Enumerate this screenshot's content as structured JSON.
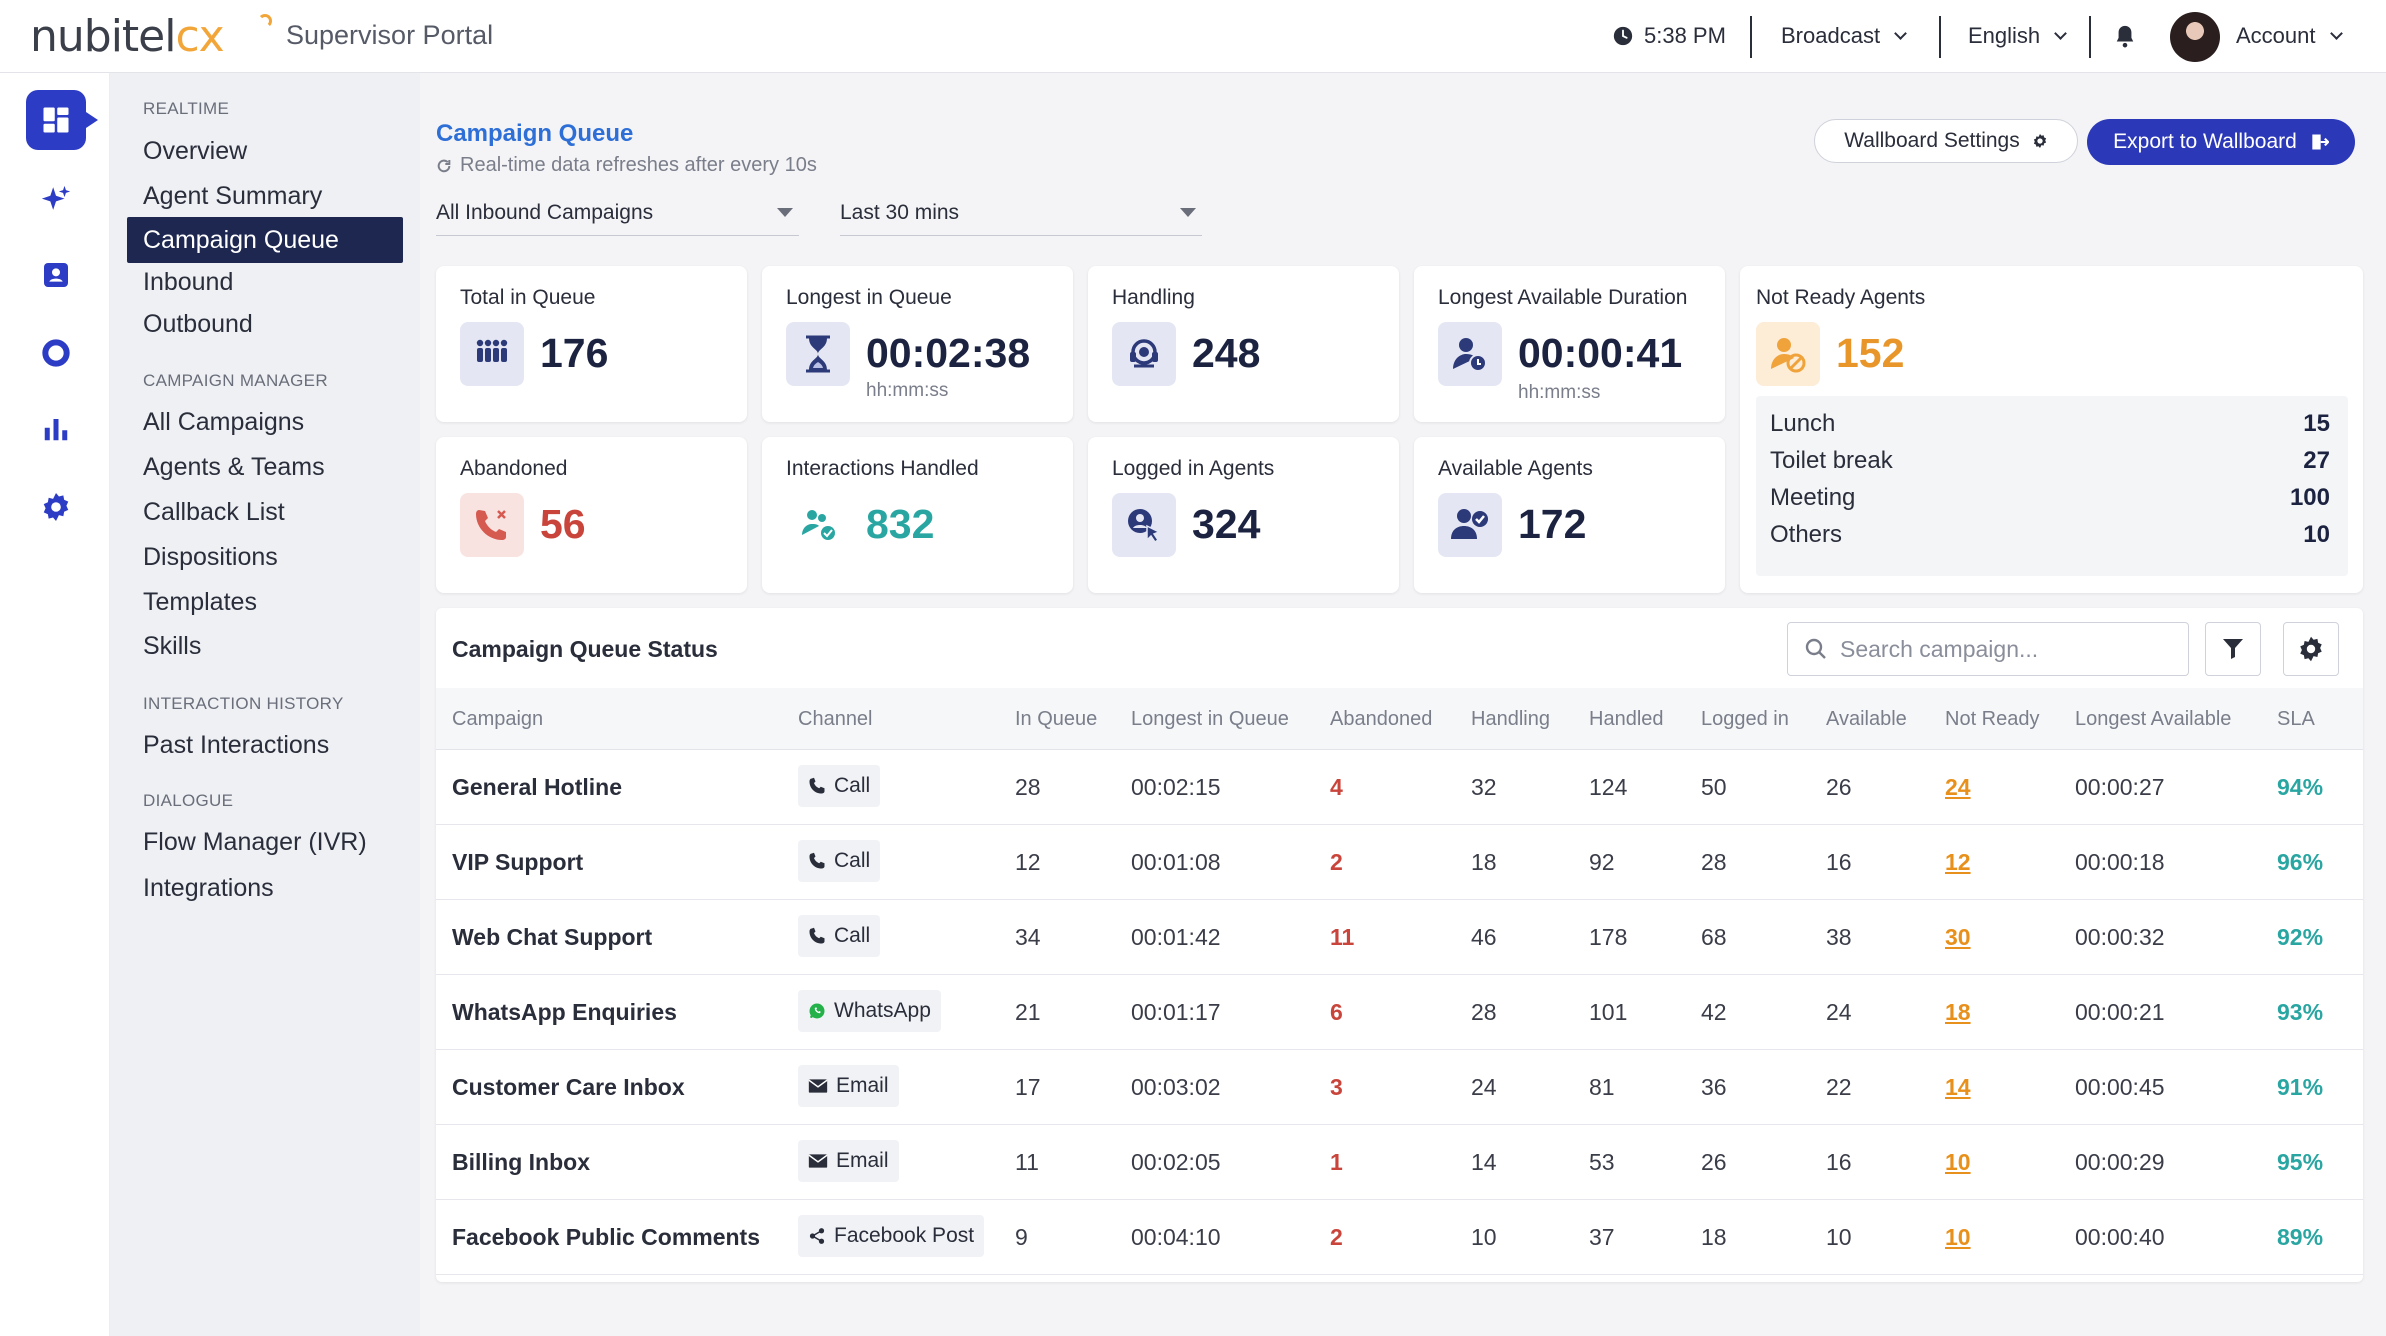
{
  "app": {
    "logo_left": "nubitel",
    "logo_right": "cx",
    "portal_title": "Supervisor Portal"
  },
  "topbar": {
    "time": "5:38 PM",
    "broadcast": "Broadcast",
    "language": "English",
    "account": "Account"
  },
  "nav": {
    "realtime": {
      "heading": "REALTIME",
      "items": [
        "Overview",
        "Agent Summary",
        "Campaign Queue",
        "Inbound",
        "Outbound"
      ]
    },
    "campaign_manager": {
      "heading": "CAMPAIGN MANAGER",
      "items": [
        "All Campaigns",
        "Agents & Teams",
        "Callback List",
        "Dispositions",
        "Templates",
        "Skills"
      ]
    },
    "interaction_history": {
      "heading": "INTERACTION HISTORY",
      "items": [
        "Past Interactions"
      ]
    },
    "dialogue": {
      "heading": "DIALOGUE",
      "items": [
        "Flow Manager (IVR)",
        "Integrations"
      ]
    }
  },
  "page": {
    "title": "Campaign Queue",
    "subtitle": "Real-time data refreshes after every 10s",
    "wallboard_settings": "Wallboard Settings",
    "export": "Export to Wallboard",
    "filter_campaign": "All Inbound Campaigns",
    "filter_range": "Last 30 mins"
  },
  "cards": {
    "total_in_queue": {
      "label": "Total in Queue",
      "value": "176"
    },
    "longest_in_queue": {
      "label": "Longest in Queue",
      "value": "00:02:38",
      "unit": "hh:mm:ss"
    },
    "handling": {
      "label": "Handling",
      "value": "248"
    },
    "longest_available": {
      "label": "Longest Available Duration",
      "value": "00:00:41",
      "unit": "hh:mm:ss"
    },
    "abandoned": {
      "label": "Abandoned",
      "value": "56"
    },
    "interactions_handled": {
      "label": "Interactions Handled",
      "value": "832"
    },
    "logged_in": {
      "label": "Logged in Agents",
      "value": "324"
    },
    "available": {
      "label": "Available Agents",
      "value": "172"
    },
    "not_ready": {
      "label": "Not Ready Agents",
      "value": "152",
      "breakdown": [
        {
          "reason": "Lunch",
          "count": "15"
        },
        {
          "reason": "Toilet break",
          "count": "27"
        },
        {
          "reason": "Meeting",
          "count": "100"
        },
        {
          "reason": "Others",
          "count": "10"
        }
      ]
    }
  },
  "table": {
    "title": "Campaign Queue Status",
    "search_placeholder": "Search campaign...",
    "columns": [
      "Campaign",
      "Channel",
      "In Queue",
      "Longest in Queue",
      "Abandoned",
      "Handling",
      "Handled",
      "Logged in",
      "Available",
      "Not Ready",
      "Longest Available",
      "SLA"
    ],
    "rows": [
      {
        "campaign": "General Hotline",
        "channel": "Call",
        "channel_icon": "phone-icon",
        "in_queue": "28",
        "longest": "00:02:15",
        "abandoned": "4",
        "handling": "32",
        "handled": "124",
        "logged_in": "50",
        "available": "26",
        "not_ready": "24",
        "longest_available": "00:00:27",
        "sla": "94%"
      },
      {
        "campaign": "VIP Support",
        "channel": "Call",
        "channel_icon": "phone-icon",
        "in_queue": "12",
        "longest": "00:01:08",
        "abandoned": "2",
        "handling": "18",
        "handled": "92",
        "logged_in": "28",
        "available": "16",
        "not_ready": "12",
        "longest_available": "00:00:18",
        "sla": "96%"
      },
      {
        "campaign": "Web Chat Support",
        "channel": "Call",
        "channel_icon": "phone-icon",
        "in_queue": "34",
        "longest": "00:01:42",
        "abandoned": "11",
        "handling": "46",
        "handled": "178",
        "logged_in": "68",
        "available": "38",
        "not_ready": "30",
        "longest_available": "00:00:32",
        "sla": "92%"
      },
      {
        "campaign": "WhatsApp Enquiries",
        "channel": "WhatsApp",
        "channel_icon": "whatsapp-icon",
        "in_queue": "21",
        "longest": "00:01:17",
        "abandoned": "6",
        "handling": "28",
        "handled": "101",
        "logged_in": "42",
        "available": "24",
        "not_ready": "18",
        "longest_available": "00:00:21",
        "sla": "93%"
      },
      {
        "campaign": "Customer Care Inbox",
        "channel": "Email",
        "channel_icon": "email-icon",
        "in_queue": "17",
        "longest": "00:03:02",
        "abandoned": "3",
        "handling": "24",
        "handled": "81",
        "logged_in": "36",
        "available": "22",
        "not_ready": "14",
        "longest_available": "00:00:45",
        "sla": "91%"
      },
      {
        "campaign": "Billing Inbox",
        "channel": "Email",
        "channel_icon": "email-icon",
        "in_queue": "11",
        "longest": "00:02:05",
        "abandoned": "1",
        "handling": "14",
        "handled": "53",
        "logged_in": "26",
        "available": "16",
        "not_ready": "10",
        "longest_available": "00:00:29",
        "sla": "95%"
      },
      {
        "campaign": "Facebook Public Comments",
        "channel": "Facebook Post",
        "channel_icon": "share-icon",
        "in_queue": "9",
        "longest": "00:04:10",
        "abandoned": "2",
        "handling": "10",
        "handled": "37",
        "logged_in": "18",
        "available": "10",
        "not_ready": "10",
        "longest_available": "00:00:40",
        "sla": "89%"
      }
    ]
  },
  "colors": {
    "primary": "#2b38b8",
    "nav_active": "#1e2750",
    "title_blue": "#2d6fd6",
    "abandoned_red": "#c9453b",
    "not_ready_orange": "#e8901c",
    "sla_teal": "#2aa6a2"
  }
}
